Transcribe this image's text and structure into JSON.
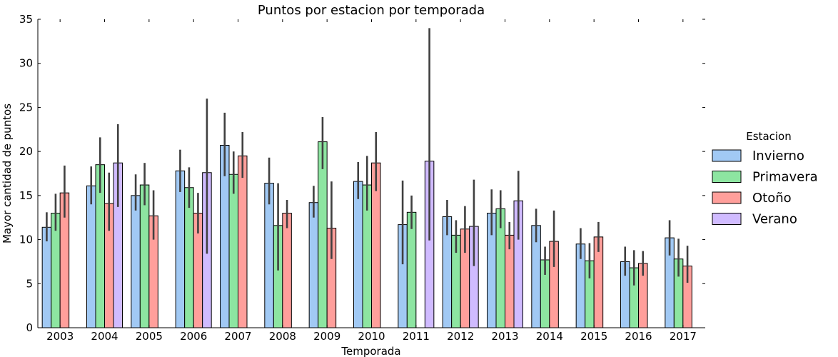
{
  "chart_data": {
    "type": "bar",
    "title": "Puntos por estacion por temporada",
    "xlabel": "Temporada",
    "ylabel": "Mayor cantidad de puntos",
    "ylim": [
      0,
      35
    ],
    "yticks": [
      0,
      5,
      10,
      15,
      20,
      25,
      30,
      35
    ],
    "categories": [
      "2003",
      "2004",
      "2005",
      "2006",
      "2007",
      "2008",
      "2009",
      "2010",
      "2011",
      "2012",
      "2013",
      "2014",
      "2015",
      "2016",
      "2017"
    ],
    "grid": false,
    "legend": {
      "title": "Estacion",
      "position": "right"
    },
    "series": [
      {
        "name": "Invierno",
        "color": "#a1c9f4",
        "values": [
          11.4,
          16.1,
          15.0,
          17.8,
          20.7,
          16.4,
          14.2,
          16.6,
          11.7,
          12.6,
          13.0,
          11.6,
          9.5,
          7.5,
          10.2
        ],
        "ci_low": [
          9.8,
          14.0,
          13.3,
          15.4,
          17.2,
          14.0,
          12.5,
          14.6,
          7.2,
          10.5,
          10.5,
          9.7,
          7.8,
          5.9,
          8.2
        ],
        "ci_high": [
          13.1,
          18.3,
          17.4,
          20.2,
          24.4,
          19.3,
          16.1,
          18.8,
          16.7,
          14.5,
          15.7,
          13.5,
          11.3,
          9.2,
          12.2
        ]
      },
      {
        "name": "Primavera",
        "color": "#8de5a1",
        "values": [
          13.0,
          18.5,
          16.2,
          15.9,
          17.4,
          11.6,
          21.1,
          16.2,
          13.1,
          10.5,
          13.5,
          7.7,
          7.6,
          6.8,
          7.8
        ],
        "ci_low": [
          11.0,
          15.3,
          13.9,
          13.6,
          15.2,
          6.5,
          18.0,
          13.3,
          11.2,
          8.5,
          11.3,
          6.0,
          5.6,
          4.8,
          5.8
        ],
        "ci_high": [
          15.2,
          21.6,
          18.7,
          18.2,
          20.0,
          16.4,
          23.9,
          19.5,
          15.0,
          12.2,
          15.6,
          9.2,
          9.6,
          8.8,
          10.1
        ]
      },
      {
        "name": "Otoño",
        "color": "#ff9f9b",
        "values": [
          15.3,
          14.1,
          12.7,
          13.0,
          19.5,
          13.0,
          11.3,
          18.7,
          null,
          11.2,
          10.5,
          9.8,
          10.3,
          7.3,
          7.0
        ],
        "ci_low": [
          12.5,
          11.0,
          10.0,
          10.7,
          17.0,
          11.3,
          7.8,
          15.5,
          null,
          8.5,
          8.9,
          6.9,
          8.6,
          5.9,
          5.1
        ],
        "ci_high": [
          18.4,
          17.6,
          15.6,
          15.3,
          22.2,
          14.5,
          16.6,
          22.2,
          null,
          13.8,
          12.0,
          13.3,
          12.0,
          8.7,
          9.3
        ]
      },
      {
        "name": "Verano",
        "color": "#d0bbff",
        "values": [
          null,
          18.7,
          null,
          17.6,
          null,
          null,
          null,
          null,
          18.9,
          11.5,
          14.4,
          null,
          null,
          null,
          null
        ],
        "ci_low": [
          null,
          13.7,
          null,
          8.4,
          null,
          null,
          null,
          null,
          9.9,
          7.0,
          10.0,
          null,
          null,
          null,
          null
        ],
        "ci_high": [
          null,
          23.1,
          null,
          26.0,
          null,
          null,
          null,
          null,
          34.0,
          16.8,
          17.8,
          null,
          null,
          null,
          null
        ]
      }
    ]
  }
}
